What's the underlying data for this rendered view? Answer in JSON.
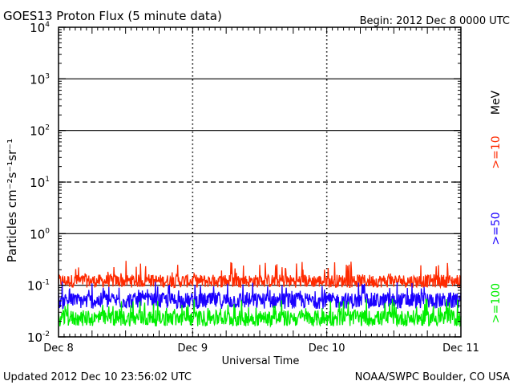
{
  "header": {
    "title": "GOES13 Proton Flux (5 minute data)",
    "begin": "Begin: 2012 Dec 8 0000 UTC"
  },
  "footer": {
    "updated": "Updated 2012 Dec 10 23:56:02 UTC",
    "source": "NOAA/SWPC Boulder, CO USA"
  },
  "chart_data": {
    "type": "line",
    "xlabel": "Universal Time",
    "ylabel": "Particles cm⁻²s⁻¹sr⁻¹",
    "yscale": "log",
    "ylim": [
      0.01,
      10000
    ],
    "xlim": [
      0,
      3
    ],
    "x_tick_labels": [
      "Dec 8",
      "Dec 9",
      "Dec 10",
      "Dec 11"
    ],
    "y_tick_labels": [
      {
        "base": "10",
        "exp": "-2",
        "value": 0.01
      },
      {
        "base": "10",
        "exp": "-1",
        "value": 0.1
      },
      {
        "base": "10",
        "exp": "0",
        "value": 1
      },
      {
        "base": "10",
        "exp": "1",
        "value": 10
      },
      {
        "base": "10",
        "exp": "2",
        "value": 100
      },
      {
        "base": "10",
        "exp": "3",
        "value": 1000
      },
      {
        "base": "10",
        "exp": "4",
        "value": 10000
      }
    ],
    "threshold_lines": [
      {
        "value": 10,
        "style": "dashed"
      },
      {
        "value": 1000,
        "style": "solid"
      },
      {
        "value": 100,
        "style": "solid"
      },
      {
        "value": 1,
        "style": "solid"
      },
      {
        "value": 0.1,
        "style": "solid"
      }
    ],
    "legend_unit": "MeV",
    "series": [
      {
        "name": ">=10",
        "color": "#ff2a00",
        "typical": 0.13,
        "min": 0.09,
        "max": 0.3
      },
      {
        "name": ">=50",
        "color": "#1a00ff",
        "typical": 0.055,
        "min": 0.035,
        "max": 0.12
      },
      {
        "name": ">=100",
        "color": "#00ee00",
        "typical": 0.025,
        "min": 0.016,
        "max": 0.055
      }
    ]
  }
}
